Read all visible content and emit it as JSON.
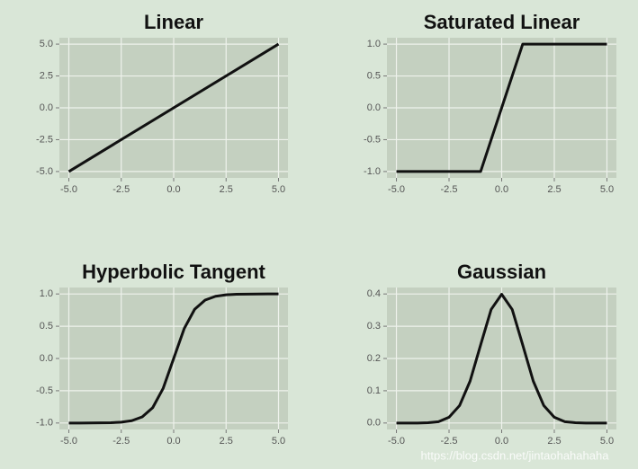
{
  "chart_data": [
    {
      "type": "line",
      "title": "Linear",
      "x": [
        -5,
        5
      ],
      "values": [
        -5,
        5
      ],
      "color": "#111111",
      "xlim": [
        -5.45,
        5.45
      ],
      "ylim": [
        -5.5,
        5.5
      ],
      "xticks": [
        {
          "value": -5,
          "label": "-5.0"
        },
        -2.5,
        {
          "value": 0,
          "label": "0.0"
        },
        2.5,
        {
          "value": 5,
          "label": "5.0"
        }
      ],
      "yticks": [
        {
          "value": -5,
          "label": "-5.0"
        },
        -2.5,
        {
          "value": 0,
          "label": "0.0"
        },
        2.5,
        {
          "value": 5,
          "label": "5.0"
        }
      ],
      "grid": true
    },
    {
      "type": "line",
      "title": "Saturated Linear",
      "x": [
        -5,
        -1,
        1,
        5
      ],
      "values": [
        -1,
        -1,
        1,
        1
      ],
      "color": "#111111",
      "xlim": [
        -5.45,
        5.45
      ],
      "ylim": [
        -1.1,
        1.1
      ],
      "xticks": [
        {
          "value": -5,
          "label": "-5.0"
        },
        -2.5,
        {
          "value": 0,
          "label": "0.0"
        },
        2.5,
        {
          "value": 5,
          "label": "5.0"
        }
      ],
      "yticks": [
        {
          "value": -1,
          "label": "-1.0"
        },
        -0.5,
        {
          "value": 0,
          "label": "0.0"
        },
        0.5,
        {
          "value": 1,
          "label": "1.0"
        }
      ],
      "grid": true
    },
    {
      "type": "line",
      "title": "Hyperbolic Tangent",
      "x": [
        -5,
        -4.5,
        -4,
        -3.5,
        -3,
        -2.5,
        -2,
        -1.5,
        -1,
        -0.5,
        0,
        0.5,
        1,
        1.5,
        2,
        2.5,
        3,
        3.5,
        4,
        4.5,
        5
      ],
      "values": [
        -1,
        -1,
        -0.999,
        -0.998,
        -0.995,
        -0.987,
        -0.964,
        -0.905,
        -0.762,
        -0.462,
        0,
        0.462,
        0.762,
        0.905,
        0.964,
        0.987,
        0.995,
        0.998,
        0.999,
        1,
        1
      ],
      "color": "#111111",
      "xlim": [
        -5.45,
        5.45
      ],
      "ylim": [
        -1.1,
        1.1
      ],
      "xticks": [
        {
          "value": -5,
          "label": "-5.0"
        },
        -2.5,
        {
          "value": 0,
          "label": "0.0"
        },
        2.5,
        {
          "value": 5,
          "label": "5.0"
        }
      ],
      "yticks": [
        {
          "value": -1,
          "label": "-1.0"
        },
        -0.5,
        {
          "value": 0,
          "label": "0.0"
        },
        0.5,
        {
          "value": 1,
          "label": "1.0"
        }
      ],
      "grid": true
    },
    {
      "type": "line",
      "title": "Gaussian",
      "x": [
        -5,
        -4.5,
        -4,
        -3.5,
        -3,
        -2.5,
        -2,
        -1.5,
        -1,
        -0.5,
        0,
        0.5,
        1,
        1.5,
        2,
        2.5,
        3,
        3.5,
        4,
        4.5,
        5
      ],
      "values": [
        0,
        0,
        0,
        0.001,
        0.004,
        0.018,
        0.054,
        0.13,
        0.242,
        0.352,
        0.399,
        0.352,
        0.242,
        0.13,
        0.054,
        0.018,
        0.004,
        0.001,
        0,
        0,
        0
      ],
      "color": "#111111",
      "xlim": [
        -5.45,
        5.45
      ],
      "ylim": [
        -0.02,
        0.42
      ],
      "xticks": [
        {
          "value": -5,
          "label": "-5.0"
        },
        -2.5,
        {
          "value": 0,
          "label": "0.0"
        },
        2.5,
        {
          "value": 5,
          "label": "5.0"
        }
      ],
      "yticks": [
        {
          "value": 0,
          "label": "0.0"
        },
        0.1,
        0.2,
        0.3,
        0.4
      ],
      "grid": true
    }
  ],
  "watermark": "https://blog.csdn.net/jintaohahahaha"
}
